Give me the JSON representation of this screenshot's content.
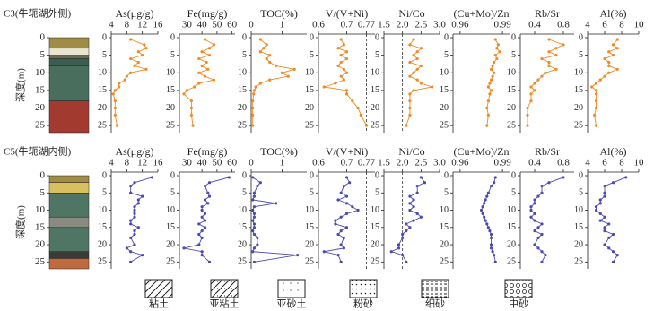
{
  "chart_data": [
    {
      "type": "depth-profile",
      "title": "C3(牛轭湖外侧)",
      "ylabel": "深度(m)",
      "color": "#f08a24",
      "ylim": [
        0,
        27
      ],
      "yticks": [
        0,
        5,
        10,
        15,
        20,
        25
      ],
      "depth": [
        0.5,
        2,
        3,
        4,
        5,
        6,
        7,
        8,
        9,
        10,
        11,
        12,
        13,
        14,
        15,
        16,
        18,
        20,
        22,
        25
      ],
      "lithology": [
        {
          "top": 0,
          "bottom": 3,
          "color": "#a08c44"
        },
        {
          "top": 3,
          "bottom": 5,
          "color": "#e8e4d0"
        },
        {
          "top": 5,
          "bottom": 6,
          "color": "#6a6a5a"
        },
        {
          "top": 6,
          "bottom": 8,
          "color": "#3b5e50"
        },
        {
          "top": 8,
          "bottom": 18,
          "color": "#4a6e5e"
        },
        {
          "top": 18,
          "bottom": 27,
          "color": "#a33a30"
        }
      ],
      "panels": [
        {
          "title": "As(μg/g)",
          "xlim": [
            4,
            16
          ],
          "xticks": [
            4,
            8,
            12,
            16
          ],
          "values": [
            9,
            12.5,
            13,
            11,
            12,
            9,
            11,
            10,
            13,
            9,
            8,
            7.5,
            6,
            6,
            5,
            4.5,
            5,
            5,
            5,
            5.5
          ]
        },
        {
          "title": "Fe(mg/g)",
          "xlim": [
            25,
            62
          ],
          "xticks": [
            30,
            40,
            50,
            60
          ],
          "values": [
            42,
            48,
            45,
            40,
            45,
            38,
            43,
            40,
            44,
            38,
            42,
            48,
            38,
            35,
            30,
            28,
            33,
            33,
            33,
            34
          ]
        },
        {
          "title": "TOC(%)",
          "xlim": [
            0,
            1.8
          ],
          "xticks": [
            0,
            1
          ],
          "values": [
            0.3,
            0.5,
            0.4,
            0.3,
            0.6,
            0.5,
            0.6,
            0.8,
            1.4,
            1.0,
            1.2,
            0.6,
            0.3,
            0.15,
            0.1,
            0.08,
            0.05,
            0.05,
            0.05,
            0.05
          ]
        },
        {
          "title": "V/(V+Ni)",
          "xlim": [
            0.6,
            0.8
          ],
          "xticks": [
            0.6,
            0.7,
            0.77
          ],
          "refline": 0.77,
          "values": [
            0.68,
            0.69,
            0.67,
            0.7,
            0.68,
            0.7,
            0.68,
            0.67,
            0.69,
            0.7,
            0.68,
            0.69,
            0.66,
            0.62,
            0.7,
            0.7,
            0.72,
            0.74,
            0.75,
            0.77
          ]
        },
        {
          "title": "Ni/Co",
          "xlim": [
            1.5,
            3
          ],
          "xticks": [
            1.5,
            {
              "value": 2,
              "label": "2.0"
            },
            2.5,
            {
              "value": 3,
              "label": "3.0"
            }
          ],
          "refline": 2,
          "values": [
            2.3,
            2.2,
            2.5,
            2.4,
            2.3,
            2.4,
            2.2,
            2.5,
            2.4,
            2.3,
            2.2,
            2.4,
            2.5,
            2.8,
            2.3,
            2.2,
            2.2,
            2.2,
            2.2,
            2.1
          ]
        },
        {
          "title": "(Cu+Mo)/Zn",
          "xlim": [
            0.955,
            0.995
          ],
          "xticks": [
            0.96,
            0.99
          ],
          "values": [
            0.985,
            0.987,
            0.986,
            0.988,
            0.985,
            0.986,
            0.984,
            0.983,
            0.982,
            0.984,
            0.983,
            0.982,
            0.981,
            0.98,
            0.982,
            0.981,
            0.98,
            0.979,
            0.98,
            0.979
          ]
        },
        {
          "title": "Rb/Sr",
          "xlim": [
            0.2,
            0.95
          ],
          "xticks": [
            0.4,
            0.8
          ],
          "values": [
            0.6,
            0.8,
            0.7,
            0.6,
            0.7,
            0.5,
            0.6,
            0.6,
            0.7,
            0.55,
            0.5,
            0.45,
            0.4,
            0.35,
            0.4,
            0.35,
            0.35,
            0.3,
            0.3,
            0.3
          ]
        },
        {
          "title": "Al(%)",
          "xlim": [
            4,
            10
          ],
          "xticks": [
            4,
            6,
            8,
            10
          ],
          "values": [
            7.5,
            7,
            7.5,
            6.5,
            7,
            6,
            6.5,
            6.5,
            7.5,
            6.5,
            6,
            5.5,
            5,
            4.5,
            5,
            5,
            5,
            5,
            4.8,
            5
          ]
        }
      ]
    },
    {
      "type": "depth-profile",
      "title": "C5(牛轭湖内侧)",
      "ylabel": "深度(m)",
      "color": "#4b4bb0",
      "ylim": [
        0,
        27
      ],
      "yticks": [
        0,
        5,
        10,
        15,
        20,
        25
      ],
      "depth": [
        0.5,
        2,
        3,
        5,
        6,
        7,
        8,
        9,
        10,
        11,
        12,
        13,
        14,
        15,
        16,
        17,
        18,
        20,
        21,
        22,
        23,
        25
      ],
      "lithology": [
        {
          "top": 0,
          "bottom": 2,
          "color": "#a08c44"
        },
        {
          "top": 2,
          "bottom": 5,
          "color": "#d8c060"
        },
        {
          "top": 5,
          "bottom": 12,
          "color": "#4f7565"
        },
        {
          "top": 12,
          "bottom": 15,
          "color": "#8a8a80"
        },
        {
          "top": 15,
          "bottom": 22,
          "color": "#4f7565"
        },
        {
          "top": 22,
          "bottom": 24,
          "color": "#3a3a36"
        },
        {
          "top": 24,
          "bottom": 27,
          "color": "#c06a40"
        }
      ],
      "panels": [
        {
          "title": "As(μg/g)",
          "xlim": [
            4,
            16
          ],
          "xticks": [
            4,
            8,
            12,
            16
          ],
          "values": [
            14.5,
            10,
            9,
            9,
            12,
            11,
            11,
            10,
            10,
            10,
            10,
            9,
            9,
            11,
            10,
            10,
            9,
            10,
            8,
            9,
            12,
            9
          ]
        },
        {
          "title": "Fe(mg/g)",
          "xlim": [
            25,
            62
          ],
          "xticks": [
            30,
            40,
            50,
            60
          ],
          "values": [
            58,
            45,
            42,
            44,
            45,
            42,
            44,
            40,
            40,
            42,
            40,
            42,
            38,
            42,
            40,
            38,
            40,
            38,
            28,
            40,
            40,
            45
          ]
        },
        {
          "title": "TOC(%)",
          "xlim": [
            0,
            1.8
          ],
          "xticks": [
            0,
            1
          ],
          "values": [
            0.05,
            0.3,
            0.2,
            0.1,
            0.1,
            0.05,
            0.8,
            0.1,
            0.05,
            0.1,
            0.1,
            0.05,
            0.1,
            0.1,
            0.05,
            0.1,
            0.2,
            0.2,
            0.1,
            0.05,
            1.5,
            0.1
          ]
        },
        {
          "title": "V/(V+Ni)",
          "xlim": [
            0.6,
            0.8
          ],
          "xticks": [
            0.6,
            0.7,
            0.77
          ],
          "refline": 0.77,
          "values": [
            0.7,
            0.71,
            0.69,
            0.68,
            0.7,
            0.67,
            0.7,
            0.72,
            0.74,
            0.7,
            0.68,
            0.66,
            0.66,
            0.7,
            0.68,
            0.67,
            0.69,
            0.68,
            0.69,
            0.62,
            0.67,
            0.68
          ]
        },
        {
          "title": "Ni/Co",
          "xlim": [
            1.5,
            3
          ],
          "xticks": [
            1.5,
            {
              "value": 2,
              "label": "2.0"
            },
            2.5,
            {
              "value": 3,
              "label": "3.0"
            }
          ],
          "refline": 2,
          "values": [
            2.5,
            2.6,
            2.4,
            2.4,
            2.2,
            2.3,
            2.2,
            2.3,
            2.2,
            2.4,
            2.5,
            2.3,
            2.1,
            2.2,
            2.1,
            2.0,
            2.0,
            1.9,
            1.9,
            1.7,
            2.0,
            2.1
          ]
        },
        {
          "title": "(Cu+Mo)/Zn",
          "xlim": [
            0.955,
            0.995
          ],
          "xticks": [
            0.96,
            0.99
          ],
          "values": [
            0.985,
            0.984,
            0.982,
            0.98,
            0.979,
            0.978,
            0.977,
            0.976,
            0.975,
            0.976,
            0.977,
            0.978,
            0.979,
            0.98,
            0.981,
            0.982,
            0.982,
            0.982,
            0.982,
            0.983,
            0.984,
            0.985
          ]
        },
        {
          "title": "Rb/Sr",
          "xlim": [
            0.2,
            0.95
          ],
          "xticks": [
            0.4,
            0.8
          ],
          "values": [
            0.8,
            0.6,
            0.5,
            0.5,
            0.45,
            0.4,
            0.4,
            0.35,
            0.35,
            0.4,
            0.35,
            0.4,
            0.5,
            0.45,
            0.4,
            0.5,
            0.45,
            0.4,
            0.45,
            0.5,
            0.55,
            0.5
          ]
        },
        {
          "title": "Al(%)",
          "xlim": [
            4,
            10
          ],
          "xticks": [
            4,
            6,
            8,
            10
          ],
          "values": [
            8.5,
            7,
            6,
            6,
            6,
            5.5,
            5.5,
            5,
            5,
            5.5,
            6,
            5.5,
            6.5,
            6,
            6,
            7,
            6.5,
            6,
            6.5,
            7,
            7.5,
            7
          ]
        }
      ]
    }
  ],
  "legend": [
    "粘土",
    "亚粘土",
    "亚砂土",
    "粉砂",
    "细砂",
    "中砂"
  ]
}
